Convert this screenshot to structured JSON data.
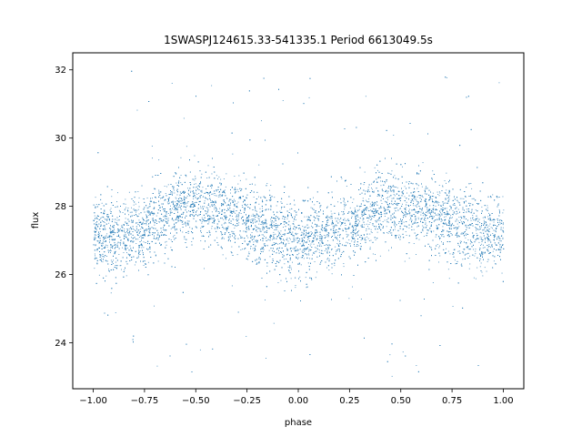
{
  "chart_data": {
    "type": "scatter",
    "title": "1SWASPJ124615.33-541335.1 Period 6613049.5s",
    "xlabel": "phase",
    "ylabel": "flux",
    "xlim": [
      -1.1,
      1.1
    ],
    "ylim": [
      22.65,
      32.5
    ],
    "xticks": [
      -1.0,
      -0.75,
      -0.5,
      -0.25,
      0.0,
      0.25,
      0.5,
      0.75,
      1.0
    ],
    "xtick_labels": [
      "−1.00",
      "−0.75",
      "−0.50",
      "−0.25",
      "0.00",
      "0.25",
      "0.50",
      "0.75",
      "1.00"
    ],
    "yticks": [
      24,
      26,
      28,
      30,
      32
    ],
    "ytick_labels": [
      "24",
      "26",
      "28",
      "30",
      "32"
    ],
    "grid": false,
    "marker_color": "#1f77b4",
    "series": [
      {
        "profile": [
          {
            "x": -1.0,
            "y": 27.2
          },
          {
            "x": -0.9,
            "y": 27.0
          },
          {
            "x": -0.8,
            "y": 27.2
          },
          {
            "x": -0.7,
            "y": 27.6
          },
          {
            "x": -0.6,
            "y": 28.0
          },
          {
            "x": -0.5,
            "y": 28.0
          },
          {
            "x": -0.4,
            "y": 27.9
          },
          {
            "x": -0.3,
            "y": 27.7
          },
          {
            "x": -0.2,
            "y": 27.4
          },
          {
            "x": -0.1,
            "y": 27.2
          },
          {
            "x": 0.0,
            "y": 27.0
          },
          {
            "x": 0.1,
            "y": 27.1
          },
          {
            "x": 0.2,
            "y": 27.3
          },
          {
            "x": 0.3,
            "y": 27.6
          },
          {
            "x": 0.4,
            "y": 28.0
          },
          {
            "x": 0.5,
            "y": 28.0
          },
          {
            "x": 0.6,
            "y": 27.9
          },
          {
            "x": 0.7,
            "y": 27.7
          },
          {
            "x": 0.8,
            "y": 27.4
          },
          {
            "x": 0.9,
            "y": 27.2
          },
          {
            "x": 1.0,
            "y": 27.2
          }
        ],
        "scatter_sd": 0.55,
        "range": [
          23.0,
          32.0
        ],
        "n_points": 9000
      }
    ]
  }
}
